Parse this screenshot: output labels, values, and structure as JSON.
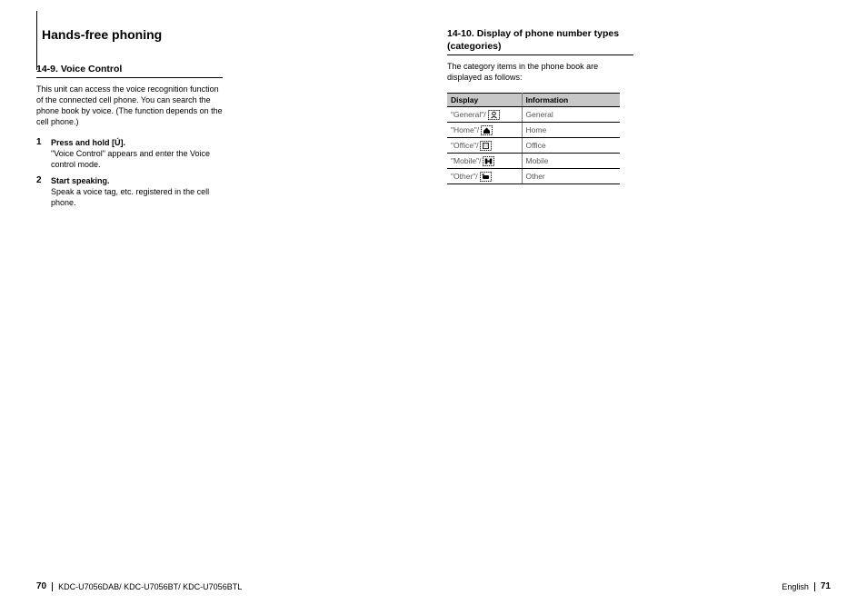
{
  "pageTitle": "Hands-free phoning",
  "left": {
    "sectionTitle": "14-9.  Voice Control",
    "intro": "This unit can access the voice recognition function of the connected cell phone. You can search the phone book by voice. (The function depends on the cell phone.)",
    "steps": [
      {
        "num": "1",
        "head": "Press and hold [Ú].",
        "text": "\"Voice Control\" appears and enter the Voice control mode."
      },
      {
        "num": "2",
        "head": "Start speaking.",
        "text": "Speak a voice tag, etc. registered in the cell phone."
      }
    ]
  },
  "right": {
    "sectionTitle": "14-10.  Display of phone number types (categories)",
    "intro": "The category items in the phone book are displayed as follows:",
    "headers": {
      "display": "Display",
      "info": "Information"
    },
    "rows": [
      {
        "label": "\"General\"/ ",
        "icon": "general",
        "info": "General"
      },
      {
        "label": "\"Home\"/ ",
        "icon": "home",
        "info": "Home"
      },
      {
        "label": "\"Office\"/ ",
        "icon": "office",
        "info": "Office"
      },
      {
        "label": "\"Mobile\"/ ",
        "icon": "mobile",
        "info": "Mobile"
      },
      {
        "label": "\"Other\"/ ",
        "icon": "other",
        "info": "Other"
      }
    ]
  },
  "footer": {
    "leftPage": "70",
    "models": "KDC-U7056DAB/ KDC-U7056BT/ KDC-U7056BTL",
    "lang": "English",
    "rightPage": "71"
  }
}
